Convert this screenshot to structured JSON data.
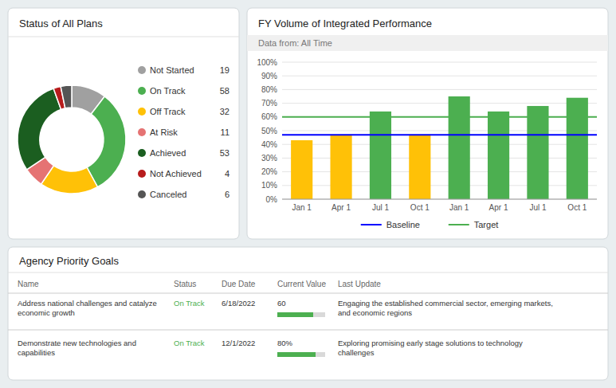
{
  "chart_data": [
    {
      "type": "donut",
      "title": "Status of All Plans",
      "categories": [
        "Not Started",
        "On Track",
        "Off Track",
        "At Risk",
        "Achieved",
        "Not Achieved",
        "Canceled"
      ],
      "values": [
        19,
        58,
        32,
        11,
        53,
        4,
        6
      ],
      "colors": [
        "#a0a0a0",
        "#4caf50",
        "#ffc107",
        "#e57373",
        "#1b5e20",
        "#b71c1c",
        "#555555"
      ],
      "legend": "right"
    },
    {
      "type": "bar",
      "title": "FY Volume of Integrated Performance",
      "subtitle": "Data from: All Time",
      "categories": [
        "Jan 1",
        "Apr 1",
        "Jul 1",
        "Oct 1",
        "Jan 1",
        "Apr 1",
        "Jul 1",
        "Oct 1"
      ],
      "values": [
        43,
        47,
        64,
        47,
        75,
        64,
        68,
        74
      ],
      "colors": [
        "#ffc107",
        "#ffc107",
        "#4caf50",
        "#ffc107",
        "#4caf50",
        "#4caf50",
        "#4caf50",
        "#4caf50"
      ],
      "reference_lines": [
        {
          "name": "Baseline",
          "value": 47,
          "color": "blue"
        },
        {
          "name": "Target",
          "value": 60,
          "color": "#4caf50"
        }
      ],
      "ylim": [
        0,
        100
      ],
      "yticks": [
        {
          "value": 0,
          "label": "0%"
        },
        {
          "value": 10,
          "label": "10%"
        },
        {
          "value": 20,
          "label": "20%"
        },
        {
          "value": 30,
          "label": "30%"
        },
        {
          "value": 40,
          "label": "40%"
        },
        {
          "value": 50,
          "label": "50%"
        },
        {
          "value": 60,
          "label": "60%"
        },
        {
          "value": 70,
          "label": "70%"
        },
        {
          "value": 80,
          "label": "80%"
        },
        {
          "value": 90,
          "label": "90%"
        },
        {
          "value": 100,
          "label": "100%"
        }
      ],
      "grid": true,
      "legend": "bottom"
    },
    {
      "type": "table",
      "title": "Agency Priority Goals",
      "columns": [
        "Name",
        "Status",
        "Due Date",
        "Current Value",
        "Last Update"
      ],
      "rows": [
        {
          "name": "Address national challenges and catalyze\neconomic growth",
          "status": "On Track",
          "due_date": "6/18/2022",
          "current_value": "60",
          "progress": 0.75,
          "last_update": "Engaging the established commercial sector, emerging markets,\nand economic regions"
        },
        {
          "name": "Demonstrate new technologies and\ncapabilities",
          "status": "On Track",
          "due_date": "12/1/2022",
          "current_value": "80%",
          "progress": 0.8,
          "last_update": "Exploring promising early stage solutions to technology\nchallenges"
        }
      ],
      "color": "#4caf50"
    }
  ]
}
